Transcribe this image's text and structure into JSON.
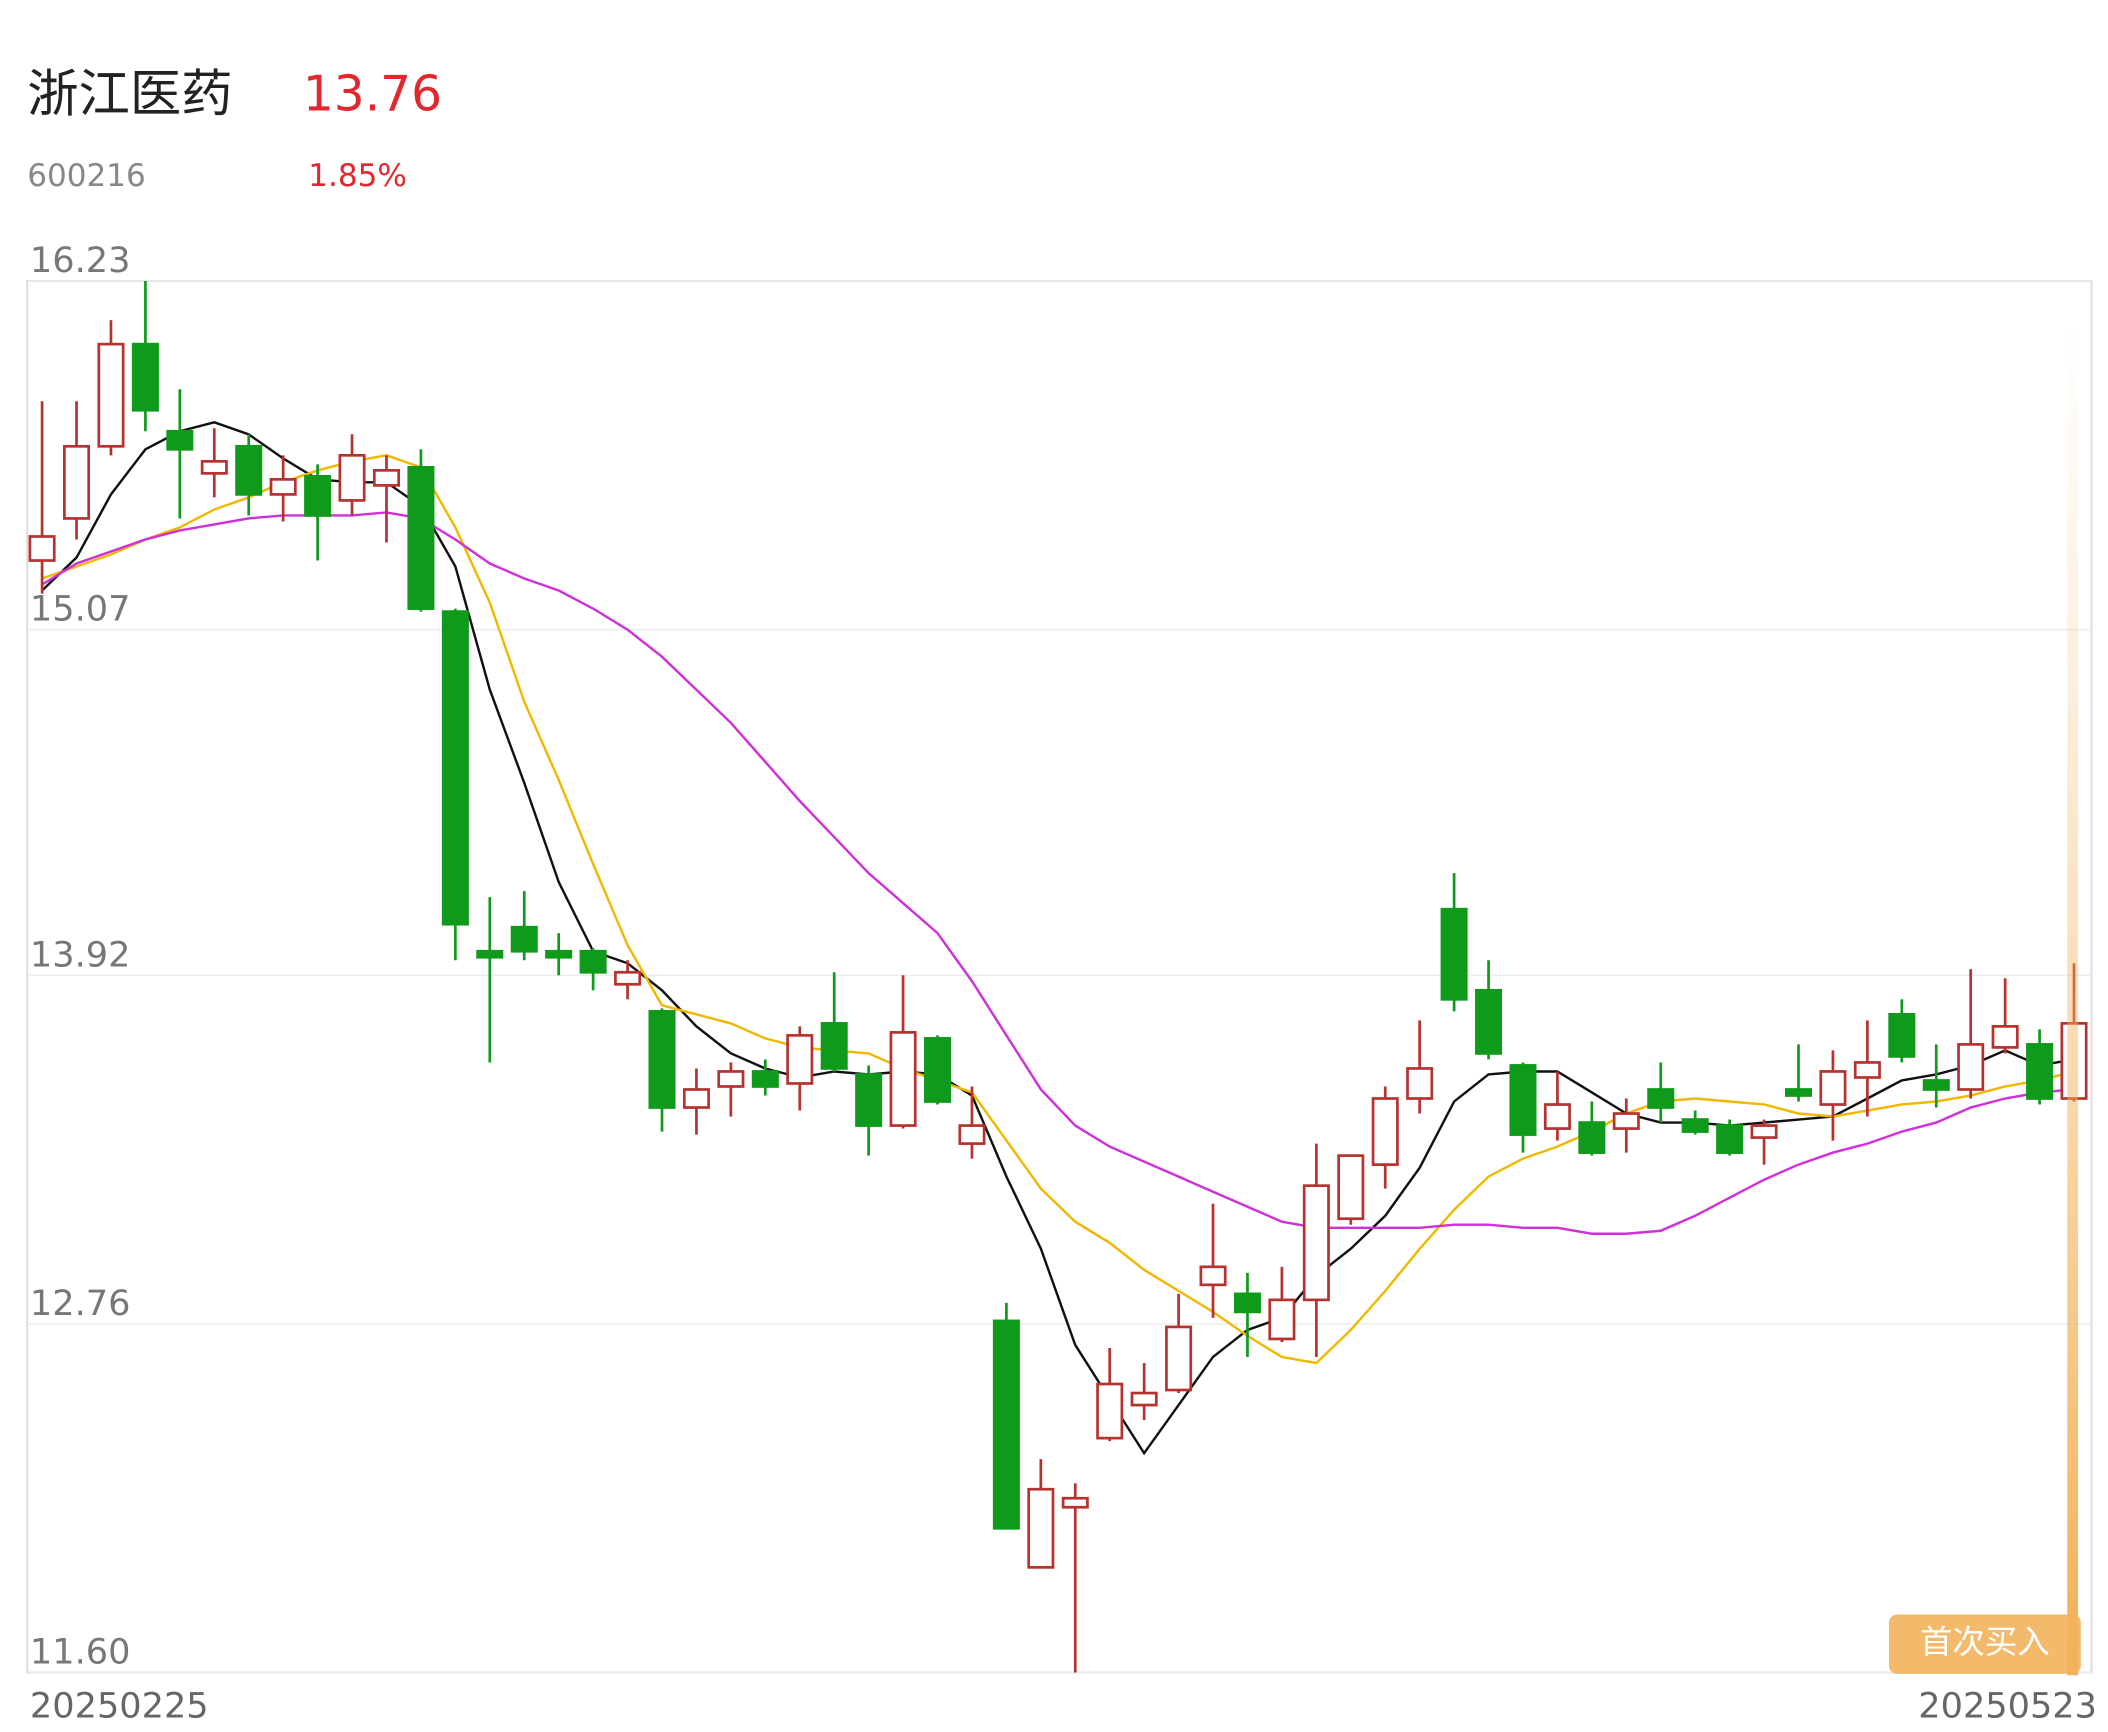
{
  "chart_data": {
    "type": "candlestick",
    "title": "浙江医药",
    "price": "13.76",
    "code": "600216",
    "change": "1.85%",
    "button": "首次买入",
    "up_color": "#b5322f",
    "down_color": "#0f9a1b",
    "grid": true,
    "ylim": [
      11.6,
      16.23
    ],
    "yticks": [
      16.23,
      15.07,
      13.92,
      12.76,
      {
        "value": 11.6,
        "label": "11.60"
      }
    ],
    "categories": [
      "20250225",
      null,
      null,
      null,
      null,
      null,
      null,
      null,
      null,
      null,
      null,
      null,
      null,
      null,
      null,
      null,
      null,
      null,
      null,
      null,
      null,
      null,
      null,
      null,
      null,
      null,
      null,
      null,
      null,
      null,
      null,
      null,
      null,
      null,
      null,
      null,
      null,
      null,
      null,
      null,
      null,
      null,
      null,
      null,
      null,
      null,
      null,
      null,
      null,
      null,
      null,
      null,
      null,
      null,
      null,
      null,
      null,
      null,
      null,
      "20250523"
    ],
    "open": [
      15.3,
      15.44,
      15.68,
      16.02,
      15.73,
      15.59,
      15.68,
      15.52,
      15.58,
      15.5,
      15.55,
      15.61,
      15.13,
      14.0,
      14.08,
      14.0,
      14.0,
      13.89,
      13.8,
      13.48,
      13.55,
      13.6,
      13.56,
      13.76,
      13.59,
      13.42,
      13.71,
      13.36,
      12.77,
      11.95,
      12.15,
      12.38,
      12.49,
      12.54,
      12.89,
      12.86,
      12.71,
      12.84,
      13.11,
      13.29,
      13.51,
      14.14,
      13.87,
      13.62,
      13.41,
      13.43,
      13.41,
      13.54,
      13.44,
      13.42,
      13.38,
      13.54,
      13.49,
      13.58,
      13.79,
      13.57,
      13.54,
      13.68,
      13.69,
      13.51
    ],
    "high": [
      15.83,
      15.83,
      16.1,
      16.23,
      15.87,
      15.74,
      15.72,
      15.65,
      15.62,
      15.72,
      15.65,
      15.67,
      15.14,
      14.18,
      14.2,
      14.06,
      14.01,
      13.97,
      13.81,
      13.61,
      13.63,
      13.64,
      13.75,
      13.93,
      13.62,
      13.92,
      13.72,
      13.55,
      12.83,
      12.31,
      12.23,
      12.68,
      12.63,
      12.86,
      13.16,
      12.93,
      12.95,
      13.36,
      13.32,
      13.55,
      13.77,
      14.26,
      13.97,
      13.63,
      13.6,
      13.5,
      13.51,
      13.63,
      13.47,
      13.44,
      13.44,
      13.69,
      13.67,
      13.77,
      13.84,
      13.69,
      13.94,
      13.91,
      13.74,
      13.96
    ],
    "low": [
      15.19,
      15.37,
      15.65,
      15.73,
      15.44,
      15.51,
      15.45,
      15.43,
      15.3,
      15.45,
      15.36,
      15.13,
      13.97,
      13.63,
      13.97,
      13.92,
      13.87,
      13.84,
      13.4,
      13.39,
      13.45,
      13.52,
      13.47,
      13.6,
      13.32,
      13.41,
      13.49,
      13.31,
      12.08,
      11.95,
      11.6,
      12.37,
      12.44,
      12.53,
      12.78,
      12.65,
      12.7,
      12.65,
      13.09,
      13.21,
      13.46,
      13.8,
      13.64,
      13.33,
      13.37,
      13.32,
      13.33,
      13.43,
      13.39,
      13.32,
      13.29,
      13.5,
      13.37,
      13.45,
      13.63,
      13.48,
      13.51,
      13.66,
      13.49,
      13.5
    ],
    "close": [
      15.38,
      15.68,
      16.02,
      15.8,
      15.67,
      15.63,
      15.52,
      15.57,
      15.45,
      15.65,
      15.6,
      15.14,
      14.09,
      13.98,
      14.0,
      13.98,
      13.93,
      13.93,
      13.48,
      13.54,
      13.6,
      13.55,
      13.72,
      13.61,
      13.42,
      13.73,
      13.5,
      13.42,
      12.08,
      12.21,
      12.18,
      12.56,
      12.53,
      12.75,
      12.95,
      12.8,
      12.84,
      13.22,
      13.32,
      13.51,
      13.61,
      13.84,
      13.66,
      13.39,
      13.49,
      13.33,
      13.46,
      13.48,
      13.4,
      13.33,
      13.42,
      13.52,
      13.6,
      13.63,
      13.65,
      13.54,
      13.69,
      13.75,
      13.51,
      13.76
    ],
    "series": [
      {
        "color": "#111111",
        "values": [
          15.2,
          15.31,
          15.52,
          15.67,
          15.73,
          15.76,
          15.72,
          15.64,
          15.57,
          15.56,
          15.56,
          15.48,
          15.28,
          14.87,
          14.56,
          14.23,
          14.0,
          13.96,
          13.87,
          13.75,
          13.66,
          13.61,
          13.58,
          13.6,
          13.59,
          13.6,
          13.59,
          13.52,
          13.25,
          13.01,
          12.69,
          12.51,
          12.33,
          12.49,
          12.65,
          12.74,
          12.78,
          12.92,
          13.01,
          13.12,
          13.28,
          13.5,
          13.59,
          13.6,
          13.6,
          13.53,
          13.46,
          13.43,
          13.43,
          13.42,
          13.43,
          13.44,
          13.45,
          13.51,
          13.57,
          13.59,
          13.62,
          13.67,
          13.62,
          13.64
        ]
      },
      {
        "color": "#f0b800",
        "values": [
          15.24,
          15.28,
          15.32,
          15.37,
          15.41,
          15.47,
          15.51,
          15.56,
          15.6,
          15.63,
          15.65,
          15.61,
          15.41,
          15.16,
          14.83,
          14.57,
          14.29,
          14.02,
          13.82,
          13.79,
          13.76,
          13.71,
          13.68,
          13.67,
          13.66,
          13.61,
          13.57,
          13.53,
          13.37,
          13.21,
          13.1,
          13.03,
          12.94,
          12.87,
          12.8,
          12.72,
          12.65,
          12.63,
          12.74,
          12.87,
          13.01,
          13.14,
          13.25,
          13.31,
          13.35,
          13.4,
          13.46,
          13.5,
          13.51,
          13.5,
          13.49,
          13.46,
          13.45,
          13.47,
          13.49,
          13.5,
          13.52,
          13.55,
          13.57,
          13.6
        ]
      },
      {
        "color": "#d030d8",
        "values": [
          15.22,
          15.29,
          15.33,
          15.37,
          15.4,
          15.42,
          15.44,
          15.45,
          15.45,
          15.45,
          15.46,
          15.44,
          15.37,
          15.29,
          15.24,
          15.2,
          15.14,
          15.07,
          14.98,
          14.87,
          14.76,
          14.63,
          14.5,
          14.38,
          14.26,
          14.16,
          14.06,
          13.9,
          13.72,
          13.54,
          13.42,
          13.35,
          13.3,
          13.25,
          13.2,
          13.15,
          13.1,
          13.08,
          13.08,
          13.08,
          13.08,
          13.09,
          13.09,
          13.08,
          13.08,
          13.06,
          13.06,
          13.07,
          13.12,
          13.18,
          13.24,
          13.29,
          13.33,
          13.36,
          13.4,
          13.43,
          13.48,
          13.51,
          13.53,
          13.54
        ]
      }
    ]
  }
}
